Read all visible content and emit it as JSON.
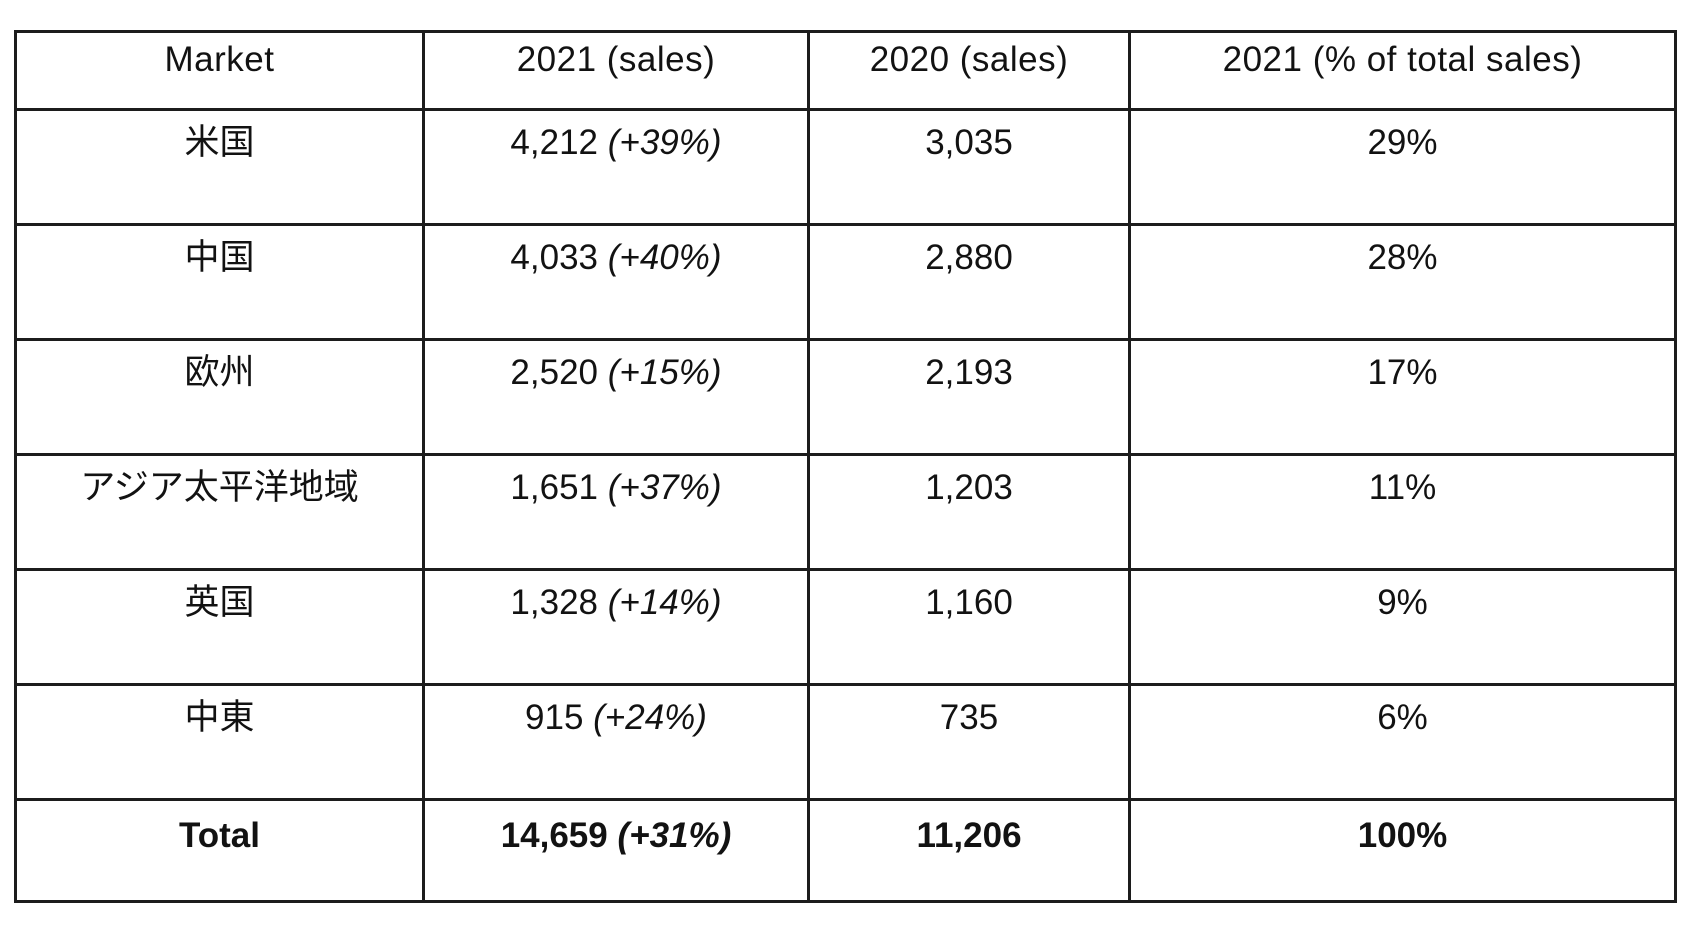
{
  "chart_data": {
    "type": "table",
    "columns": [
      "Market",
      "2021 (sales)",
      "2020 (sales)",
      "2021 (% of total sales)"
    ],
    "rows": [
      {
        "market": "米国",
        "sales_2021": "4,212",
        "change_2021": "(+39%)",
        "sales_2020": "3,035",
        "pct_of_total_2021": "29%"
      },
      {
        "market": "中国",
        "sales_2021": "4,033",
        "change_2021": "(+40%)",
        "sales_2020": "2,880",
        "pct_of_total_2021": "28%"
      },
      {
        "market": "欧州",
        "sales_2021": "2,520",
        "change_2021": "(+15%)",
        "sales_2020": "2,193",
        "pct_of_total_2021": "17%"
      },
      {
        "market": "アジア太平洋地域",
        "sales_2021": "1,651",
        "change_2021": "(+37%)",
        "sales_2020": "1,203",
        "pct_of_total_2021": "11%"
      },
      {
        "market": "英国",
        "sales_2021": "1,328",
        "change_2021": "(+14%)",
        "sales_2020": "1,160",
        "pct_of_total_2021": "9%"
      },
      {
        "market": "中東",
        "sales_2021": "915",
        "change_2021": "(+24%)",
        "sales_2020": "735",
        "pct_of_total_2021": "6%"
      }
    ],
    "total_row": {
      "market": "Total",
      "sales_2021": "14,659",
      "change_2021": "(+31%)",
      "sales_2020": "11,206",
      "pct_of_total_2021": "100%"
    },
    "border_color": "#1c1c1c",
    "text_color": "#121212",
    "background_color": "#ffffff"
  }
}
